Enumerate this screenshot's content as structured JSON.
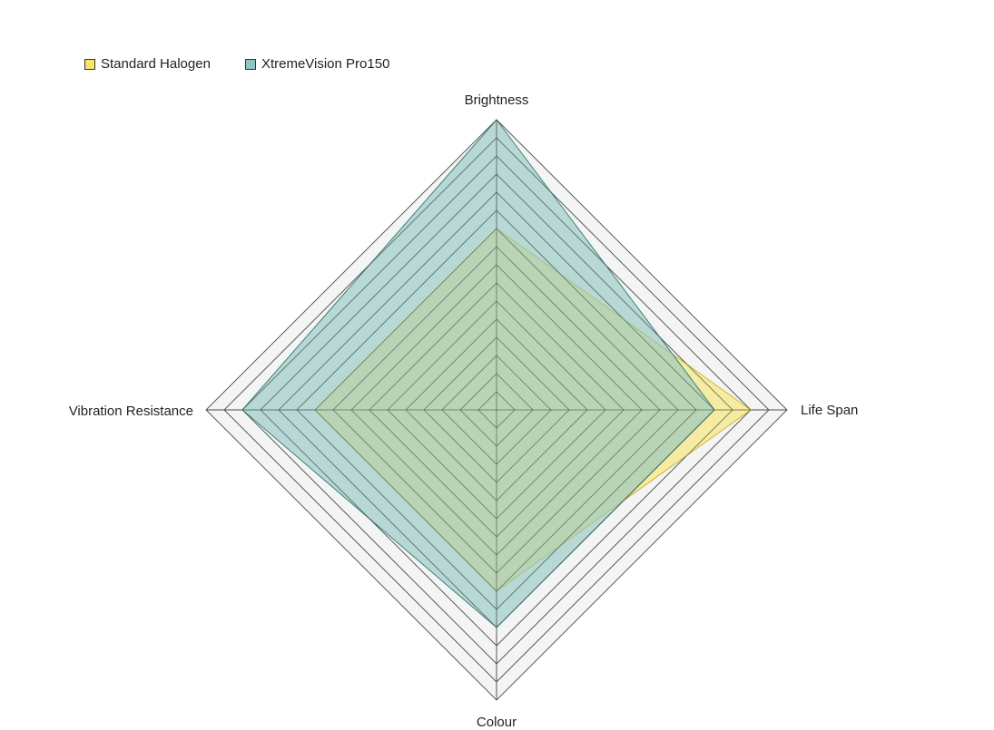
{
  "chart_data": {
    "type": "radar",
    "axes": [
      "Brightness",
      "Life Span",
      "Colour",
      "Vibration Resistance"
    ],
    "ticks": 16,
    "max": 16,
    "grid": true,
    "legend_position": "top-left",
    "series": [
      {
        "name": "Standard Halogen",
        "values": [
          10,
          14,
          10,
          10
        ],
        "color": "#f5e56b"
      },
      {
        "name": "XtremeVision Pro150",
        "values": [
          16,
          12,
          12,
          14
        ],
        "color": "#8fc5c2"
      }
    ]
  }
}
